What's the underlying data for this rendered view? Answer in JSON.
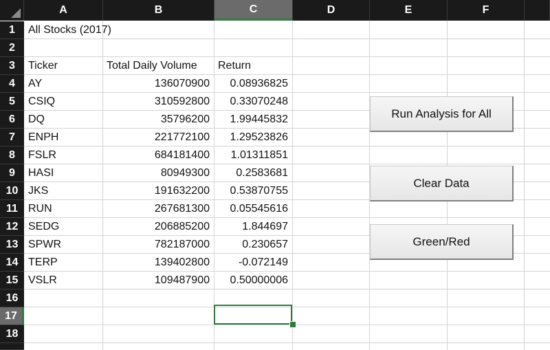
{
  "columns": [
    "A",
    "B",
    "C",
    "D",
    "E",
    "F"
  ],
  "rows": [
    "1",
    "2",
    "3",
    "4",
    "5",
    "6",
    "7",
    "8",
    "9",
    "10",
    "11",
    "12",
    "13",
    "14",
    "15",
    "16",
    "17",
    "18"
  ],
  "title": "All Stocks (2017)",
  "table": {
    "headers": [
      "Ticker",
      "Total Daily Volume",
      "Return"
    ],
    "rows": [
      [
        "AY",
        "136070900",
        "0.08936825"
      ],
      [
        "CSIQ",
        "310592800",
        "0.33070248"
      ],
      [
        "DQ",
        "35796200",
        "1.99445832"
      ],
      [
        "ENPH",
        "221772100",
        "1.29523826"
      ],
      [
        "FSLR",
        "684181400",
        "1.01311851"
      ],
      [
        "HASI",
        "80949300",
        "0.2583681"
      ],
      [
        "JKS",
        "191632200",
        "0.53870755"
      ],
      [
        "RUN",
        "267681300",
        "0.05545616"
      ],
      [
        "SEDG",
        "206885200",
        "1.844697"
      ],
      [
        "SPWR",
        "782187000",
        "0.230657"
      ],
      [
        "TERP",
        "139402800",
        "-0.072149"
      ],
      [
        "VSLR",
        "109487900",
        "0.50000006"
      ]
    ]
  },
  "buttons": {
    "run_all": "Run Analysis for All",
    "clear": "Clear Data",
    "green_red": "Green/Red"
  },
  "active_column": "C",
  "active_row": "17",
  "colors": {
    "header_bg": "#1a1a1a",
    "active_header_bg": "#6b6b6b",
    "selection": "#2f7a3d",
    "gridline": "#d4d4d4"
  }
}
